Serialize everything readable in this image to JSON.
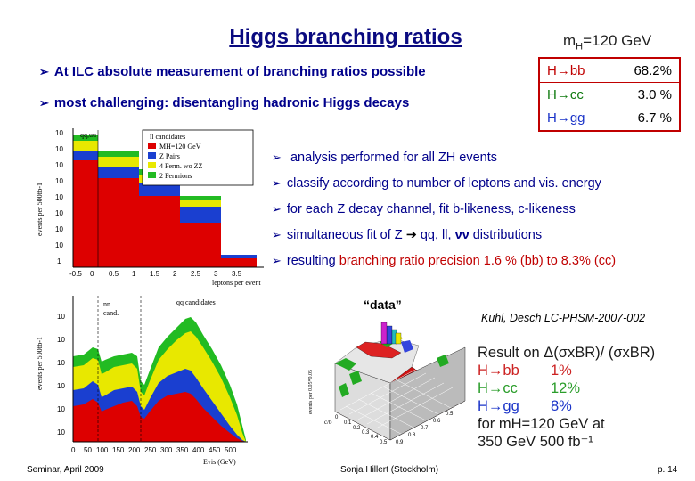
{
  "title": "Higgs branching ratios",
  "bullets_top": [
    "At ILC absolute measurement of branching ratios possible",
    "most challenging: disentangling hadronic Higgs decays"
  ],
  "br_table": {
    "header": "m",
    "header_sub": "H",
    "header_rest": "=120 GeV",
    "rows": [
      {
        "channel": "H→bb",
        "value": "68.2%"
      },
      {
        "channel": "H→cc",
        "value": "3.0 %"
      },
      {
        "channel": "H→gg",
        "value": "6.7 %"
      }
    ]
  },
  "bullets_right": [
    {
      "text": "analysis performed for all ZH events"
    },
    {
      "text": "classify according to number of leptons and vis. energy"
    },
    {
      "text": "for each Z decay channel, fit b-likeness, c-likeness"
    },
    {
      "text_a": "simultaneous fit of Z",
      "arrow": "➔",
      "text_b": " qq, ll, ",
      "nu": "νν",
      "text_c": " distributions"
    },
    {
      "text_a": "resulting ",
      "red": "branching ratio precision 1.6 % (bb) to 8.3% (cc)"
    }
  ],
  "reference": "Kuhl, Desch LC-PHSM-2007-002",
  "data_label": "“data”",
  "result": {
    "line1": "Result on Δ(σxBR)/ (σxBR)",
    "rows": [
      {
        "channel": "H→bb",
        "value": "1%",
        "color": "#cc2222"
      },
      {
        "channel": "H→cc",
        "value": "12%",
        "color": "#2a9d2a"
      },
      {
        "channel": "H→gg",
        "value": "8%",
        "color": "#1a33c8"
      }
    ],
    "line5": "for mH=120 GeV at",
    "line6": "350 GeV 500 fb⁻¹"
  },
  "hist1": {
    "ylabel": "events per 500fb-1",
    "xlabel": "leptons per event",
    "top_label": "qq,uu",
    "legend": [
      {
        "label": "ll candidates",
        "color": "#ffffff"
      },
      {
        "label": "MH=120 GeV",
        "color": "#dd0000"
      },
      {
        "label": "Z Pairs",
        "color": "#1a3fd0"
      },
      {
        "label": "4 Ferm. wo ZZ",
        "color": "#e8e800"
      },
      {
        "label": "2 Fermions",
        "color": "#22bb22"
      }
    ],
    "yticks": [
      "10",
      "10",
      "10",
      "10",
      "10",
      "10",
      "10",
      "10",
      "1"
    ],
    "xticks": [
      "-0.5",
      "0",
      "0.5",
      "1",
      "1.5",
      "2",
      "2.5",
      "3",
      "3.5"
    ]
  },
  "hist2": {
    "ylabel": "events per 500fb-1",
    "xlabel": "Evis (GeV)",
    "labels": [
      "nn",
      "cand.",
      "qq candidates"
    ],
    "yticks": [
      "10",
      "10",
      "10",
      "10",
      "10",
      "10"
    ],
    "xticks": [
      "0",
      "50",
      "100",
      "150",
      "200",
      "250",
      "300",
      "350",
      "400",
      "450",
      "500"
    ]
  },
  "lego": {
    "zlabel": "events per 0.05*0.05",
    "xlabel": "c/b"
  },
  "footer": {
    "left": "Seminar, April 2009",
    "center": "Sonja Hillert (Stockholm)",
    "right": "p. 14"
  }
}
